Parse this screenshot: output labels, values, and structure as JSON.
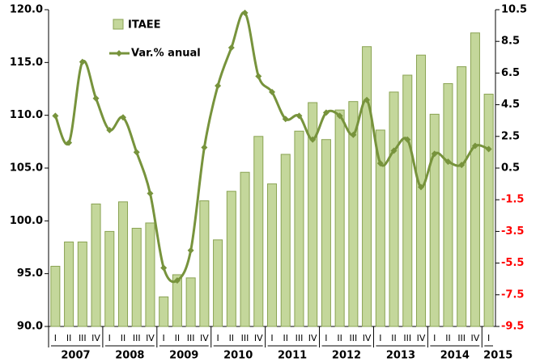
{
  "chart_data": {
    "type": "bar-line",
    "categories": [
      "I",
      "II",
      "III",
      "IV",
      "I",
      "II",
      "III",
      "IV",
      "I",
      "II",
      "III",
      "IV",
      "I",
      "II",
      "III",
      "IV",
      "I",
      "II",
      "III",
      "IV",
      "I",
      "II",
      "III",
      "IV",
      "I",
      "II",
      "III",
      "IV",
      "I",
      "II",
      "III",
      "IV",
      "I"
    ],
    "years": [
      "2007",
      "2008",
      "2009",
      "2010",
      "2011",
      "2012",
      "2013",
      "2014",
      "2015"
    ],
    "series": [
      {
        "name": "ITAEE",
        "type": "bar",
        "color": "#c4d79b",
        "edge": "#8aa353",
        "values": [
          95.7,
          98.0,
          98.0,
          101.6,
          99.0,
          101.8,
          99.3,
          99.8,
          92.8,
          94.9,
          94.6,
          101.9,
          98.2,
          102.8,
          104.6,
          108.0,
          103.5,
          106.3,
          108.5,
          111.2,
          107.7,
          110.5,
          111.3,
          116.5,
          108.6,
          112.2,
          113.8,
          115.7,
          110.1,
          113.0,
          114.6,
          117.8,
          112.0
        ]
      },
      {
        "name": "Var.% anual",
        "type": "line",
        "axis": "y2",
        "color": "#77933c",
        "values": [
          3.8,
          2.1,
          7.2,
          4.9,
          2.9,
          3.7,
          1.5,
          -1.1,
          -5.8,
          -6.6,
          -4.7,
          1.8,
          5.7,
          8.1,
          10.3,
          6.3,
          5.3,
          3.6,
          3.8,
          2.3,
          4.0,
          3.8,
          2.6,
          4.8,
          0.8,
          1.6,
          2.3,
          -0.7,
          1.4,
          0.9,
          0.7,
          1.9,
          1.7
        ]
      }
    ],
    "ylim": [
      90,
      120
    ],
    "yticks": [
      {
        "value": 90,
        "label": "90.0"
      },
      {
        "value": 95,
        "label": "95.0"
      },
      {
        "value": 100,
        "label": "100.0"
      },
      {
        "value": 105,
        "label": "105.0"
      },
      {
        "value": 110,
        "label": "110.0"
      },
      {
        "value": 115,
        "label": "115.0"
      },
      {
        "value": 120,
        "label": "120.0"
      }
    ],
    "y2lim": [
      -9.5,
      10.5
    ],
    "y2ticks": [
      -9.5,
      -7.5,
      -5.5,
      -3.5,
      -1.5,
      0.5,
      2.5,
      4.5,
      6.5,
      8.5,
      10.5
    ],
    "negative_tick_color": "#ff0000",
    "legend": "top-left"
  }
}
